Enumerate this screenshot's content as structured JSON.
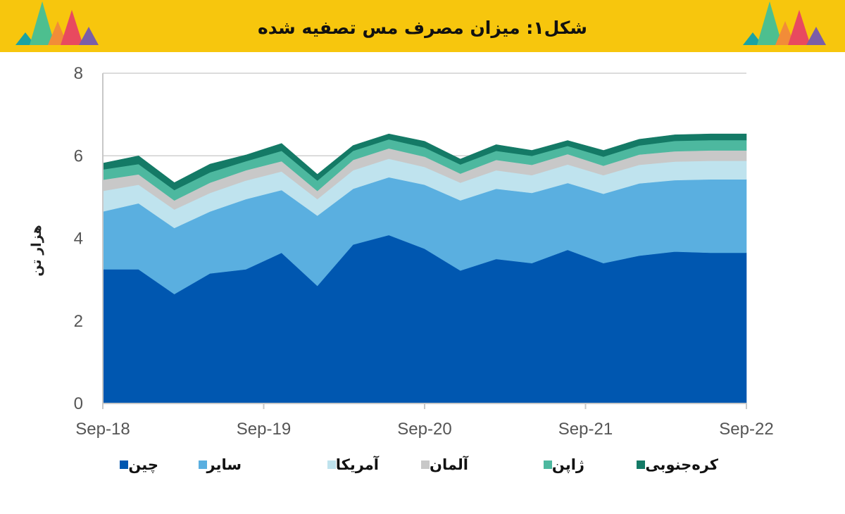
{
  "header": {
    "title": "شکل۱: میزان مصرف مس تصفیه شده"
  },
  "decoration": {
    "icon": "colored-triangles-icon",
    "colors": [
      "#1aa3a3",
      "#4dbf8f",
      "#f28c38",
      "#e84a5f",
      "#7b5ea7"
    ]
  },
  "chart_data": {
    "type": "area",
    "stacked": true,
    "title": "",
    "xlabel": "",
    "ylabel": "هزار تن",
    "ylim": [
      0,
      8
    ],
    "yticks": [
      "0",
      "2",
      "4",
      "6",
      "8"
    ],
    "xticks": [
      "Sep-18",
      "Sep-19",
      "Sep-20",
      "Sep-21",
      "Sep-22"
    ],
    "grid": true,
    "legend_position": "bottom",
    "x": [
      0,
      1,
      2,
      3,
      4,
      5,
      6,
      7,
      8,
      9,
      10,
      11,
      12,
      13,
      14,
      15,
      16,
      17,
      18
    ],
    "series": [
      {
        "name": "چین",
        "color": "#0057b0",
        "values": [
          3.25,
          3.25,
          2.65,
          3.15,
          3.25,
          3.65,
          2.85,
          3.85,
          4.08,
          3.75,
          3.22,
          3.5,
          3.4,
          3.72,
          3.4,
          3.58,
          3.68,
          3.65,
          3.65
        ]
      },
      {
        "name": "سایر",
        "color": "#5aafe0",
        "values": [
          1.4,
          1.6,
          1.6,
          1.5,
          1.7,
          1.52,
          1.7,
          1.35,
          1.4,
          1.55,
          1.7,
          1.7,
          1.7,
          1.62,
          1.68,
          1.75,
          1.73,
          1.78,
          1.78
        ]
      },
      {
        "name": "آمریکا",
        "color": "#bfe3ee",
        "values": [
          0.5,
          0.45,
          0.45,
          0.45,
          0.45,
          0.45,
          0.4,
          0.45,
          0.45,
          0.43,
          0.43,
          0.45,
          0.43,
          0.45,
          0.45,
          0.45,
          0.45,
          0.45,
          0.45
        ]
      },
      {
        "name": "آلمان",
        "color": "#c8c8c8",
        "values": [
          0.27,
          0.25,
          0.22,
          0.25,
          0.25,
          0.25,
          0.2,
          0.25,
          0.25,
          0.25,
          0.22,
          0.25,
          0.25,
          0.25,
          0.23,
          0.25,
          0.25,
          0.25,
          0.25
        ]
      },
      {
        "name": "ژاپن",
        "color": "#4db89f",
        "values": [
          0.25,
          0.25,
          0.25,
          0.25,
          0.22,
          0.25,
          0.25,
          0.22,
          0.22,
          0.22,
          0.22,
          0.22,
          0.22,
          0.2,
          0.22,
          0.22,
          0.25,
          0.25,
          0.25
        ]
      },
      {
        "name": "کره‌جنوبی",
        "color": "#147a66",
        "values": [
          0.15,
          0.2,
          0.18,
          0.2,
          0.15,
          0.18,
          0.15,
          0.13,
          0.13,
          0.15,
          0.13,
          0.15,
          0.13,
          0.13,
          0.15,
          0.15,
          0.15,
          0.15,
          0.15
        ]
      }
    ]
  }
}
